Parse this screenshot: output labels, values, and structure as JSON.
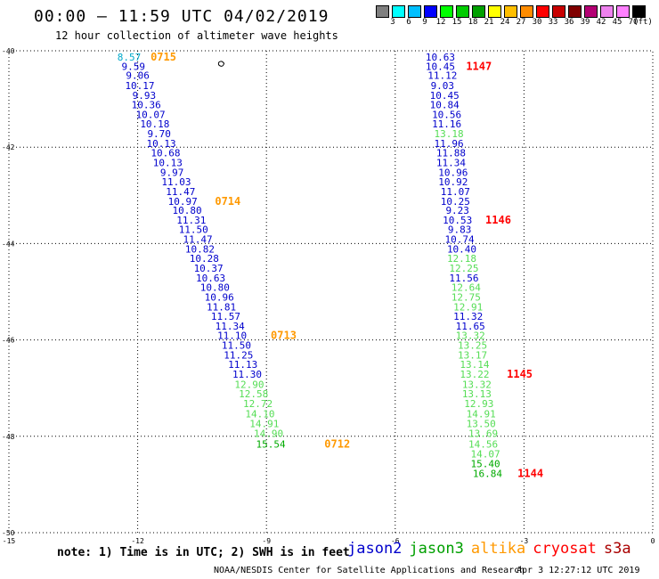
{
  "title": "00:00 — 11:59 UTC 04/02/2019",
  "subtitle": "12 hour collection of altimeter wave heights",
  "legend": {
    "unit": "(ft)",
    "colors": [
      "#7f7f7f",
      "#00ffff",
      "#00bfff",
      "#0000ff",
      "#00ff00",
      "#00cc00",
      "#00a000",
      "#ffff00",
      "#ffbf00",
      "#ff8c00",
      "#ff0000",
      "#c80000",
      "#800000",
      "#b30073",
      "#ee82ee",
      "#ff80ff",
      "#000000"
    ],
    "labels": [
      "3",
      "6",
      "9",
      "12",
      "15",
      "18",
      "21",
      "24",
      "27",
      "30",
      "33",
      "36",
      "39",
      "42",
      "45",
      "70"
    ]
  },
  "note": "note:  1) Time is in UTC;  2) SWH is in feet",
  "satellites": [
    {
      "name": "jason2",
      "color": "#0000cc"
    },
    {
      "name": "jason3",
      "color": "#00a000"
    },
    {
      "name": "altika",
      "color": "#ff9900"
    },
    {
      "name": "cryosat",
      "color": "#ff0000"
    },
    {
      "name": "s3a",
      "color": "#aa0000"
    }
  ],
  "footer": {
    "center": "NOAA/NESDIS Center for Satellite Applications and Research",
    "right": "Apr  3 12:27:12 UTC 2019"
  },
  "chart_data": {
    "type": "scatter",
    "xlim": [
      -15,
      0
    ],
    "ylim": [
      -50,
      -40
    ],
    "x_ticks": [
      "-15",
      "-12",
      "-9",
      "-6",
      "-3",
      "0"
    ],
    "y_ticks": [
      "-40",
      "-42",
      "-44",
      "-46",
      "-48",
      "-50"
    ],
    "grid": true,
    "track_left": [
      {
        "x": -12.2,
        "y": -40.13,
        "v": "8.57",
        "c": "#00aacc"
      },
      {
        "x": -12.1,
        "y": -40.32,
        "v": "9.59",
        "c": "#0000cc"
      },
      {
        "x": -12.0,
        "y": -40.51,
        "v": "9.06",
        "c": "#0000cc"
      },
      {
        "x": -11.95,
        "y": -40.72,
        "v": "10.17",
        "c": "#0000cc"
      },
      {
        "x": -11.85,
        "y": -40.92,
        "v": "9.93",
        "c": "#0000cc"
      },
      {
        "x": -11.8,
        "y": -41.12,
        "v": "10.36",
        "c": "#0000cc"
      },
      {
        "x": -11.7,
        "y": -41.32,
        "v": "10.07",
        "c": "#0000cc"
      },
      {
        "x": -11.6,
        "y": -41.52,
        "v": "10.18",
        "c": "#0000cc"
      },
      {
        "x": -11.5,
        "y": -41.72,
        "v": "9.70",
        "c": "#0000cc"
      },
      {
        "x": -11.45,
        "y": -41.92,
        "v": "10.13",
        "c": "#0000cc"
      },
      {
        "x": -11.35,
        "y": -42.12,
        "v": "10.68",
        "c": "#0000cc"
      },
      {
        "x": -11.3,
        "y": -42.32,
        "v": "10.13",
        "c": "#0000cc"
      },
      {
        "x": -11.2,
        "y": -42.52,
        "v": "9.97",
        "c": "#0000cc"
      },
      {
        "x": -11.1,
        "y": -42.72,
        "v": "11.03",
        "c": "#0000cc"
      },
      {
        "x": -11.0,
        "y": -42.92,
        "v": "11.47",
        "c": "#0000cc"
      },
      {
        "x": -10.95,
        "y": -43.12,
        "v": "10.97",
        "c": "#0000cc"
      },
      {
        "x": -10.85,
        "y": -43.31,
        "v": "10.80",
        "c": "#0000cc"
      },
      {
        "x": -10.75,
        "y": -43.51,
        "v": "11.31",
        "c": "#0000cc"
      },
      {
        "x": -10.7,
        "y": -43.71,
        "v": "11.50",
        "c": "#0000cc"
      },
      {
        "x": -10.6,
        "y": -43.91,
        "v": "11.47",
        "c": "#0000cc"
      },
      {
        "x": -10.55,
        "y": -44.11,
        "v": "10.82",
        "c": "#0000cc"
      },
      {
        "x": -10.45,
        "y": -44.31,
        "v": "10.28",
        "c": "#0000cc"
      },
      {
        "x": -10.35,
        "y": -44.51,
        "v": "10.37",
        "c": "#0000cc"
      },
      {
        "x": -10.3,
        "y": -44.71,
        "v": "10.63",
        "c": "#0000cc"
      },
      {
        "x": -10.2,
        "y": -44.91,
        "v": "10.80",
        "c": "#0000cc"
      },
      {
        "x": -10.1,
        "y": -45.11,
        "v": "10.96",
        "c": "#0000cc"
      },
      {
        "x": -10.05,
        "y": -45.31,
        "v": "11.81",
        "c": "#0000cc"
      },
      {
        "x": -9.95,
        "y": -45.51,
        "v": "11.57",
        "c": "#0000cc"
      },
      {
        "x": -9.85,
        "y": -45.71,
        "v": "11.34",
        "c": "#0000cc"
      },
      {
        "x": -9.8,
        "y": -45.91,
        "v": "11.10",
        "c": "#0000cc"
      },
      {
        "x": -9.7,
        "y": -46.11,
        "v": "11.50",
        "c": "#0000cc"
      },
      {
        "x": -9.65,
        "y": -46.31,
        "v": "11.25",
        "c": "#0000cc"
      },
      {
        "x": -9.55,
        "y": -46.51,
        "v": "11.13",
        "c": "#0000cc"
      },
      {
        "x": -9.45,
        "y": -46.71,
        "v": "11.30",
        "c": "#0000cc"
      },
      {
        "x": -9.4,
        "y": -46.92,
        "v": "12.90",
        "c": "#55dd55"
      },
      {
        "x": -9.3,
        "y": -47.12,
        "v": "12.58",
        "c": "#55dd55"
      },
      {
        "x": -9.2,
        "y": -47.32,
        "v": "12.72",
        "c": "#55dd55"
      },
      {
        "x": -9.15,
        "y": -47.53,
        "v": "14.10",
        "c": "#55dd55"
      },
      {
        "x": -9.05,
        "y": -47.74,
        "v": "14.91",
        "c": "#55dd55"
      },
      {
        "x": -8.95,
        "y": -47.94,
        "v": "14.90",
        "c": "#55dd55"
      },
      {
        "x": -8.9,
        "y": -48.16,
        "v": "15.54",
        "c": "#00aa00"
      }
    ],
    "track_right": [
      {
        "x": -4.95,
        "y": -40.13,
        "v": "10.63",
        "c": "#0000cc"
      },
      {
        "x": -4.95,
        "y": -40.32,
        "v": "10.45",
        "c": "#0000cc"
      },
      {
        "x": -4.9,
        "y": -40.51,
        "v": "11.12",
        "c": "#0000cc"
      },
      {
        "x": -4.9,
        "y": -40.72,
        "v": "9.03",
        "c": "#0000cc"
      },
      {
        "x": -4.85,
        "y": -40.92,
        "v": "10.45",
        "c": "#0000cc"
      },
      {
        "x": -4.85,
        "y": -41.12,
        "v": "10.84",
        "c": "#0000cc"
      },
      {
        "x": -4.8,
        "y": -41.32,
        "v": "10.56",
        "c": "#0000cc"
      },
      {
        "x": -4.8,
        "y": -41.52,
        "v": "11.16",
        "c": "#0000cc"
      },
      {
        "x": -4.75,
        "y": -41.72,
        "v": "13.18",
        "c": "#55dd55"
      },
      {
        "x": -4.75,
        "y": -41.92,
        "v": "11.96",
        "c": "#0000cc"
      },
      {
        "x": -4.7,
        "y": -42.12,
        "v": "11.88",
        "c": "#0000cc"
      },
      {
        "x": -4.7,
        "y": -42.32,
        "v": "11.34",
        "c": "#0000cc"
      },
      {
        "x": -4.65,
        "y": -42.52,
        "v": "10.96",
        "c": "#0000cc"
      },
      {
        "x": -4.65,
        "y": -42.72,
        "v": "10.92",
        "c": "#0000cc"
      },
      {
        "x": -4.6,
        "y": -42.92,
        "v": "11.07",
        "c": "#0000cc"
      },
      {
        "x": -4.6,
        "y": -43.12,
        "v": "10.25",
        "c": "#0000cc"
      },
      {
        "x": -4.55,
        "y": -43.31,
        "v": "9.23",
        "c": "#0000cc"
      },
      {
        "x": -4.55,
        "y": -43.51,
        "v": "10.53",
        "c": "#0000cc"
      },
      {
        "x": -4.5,
        "y": -43.71,
        "v": "9.83",
        "c": "#0000cc"
      },
      {
        "x": -4.5,
        "y": -43.91,
        "v": "10.74",
        "c": "#0000cc"
      },
      {
        "x": -4.45,
        "y": -44.11,
        "v": "10.40",
        "c": "#0000cc"
      },
      {
        "x": -4.45,
        "y": -44.31,
        "v": "12.18",
        "c": "#55dd55"
      },
      {
        "x": -4.4,
        "y": -44.51,
        "v": "12.25",
        "c": "#55dd55"
      },
      {
        "x": -4.4,
        "y": -44.71,
        "v": "11.56",
        "c": "#0000cc"
      },
      {
        "x": -4.35,
        "y": -44.91,
        "v": "12.64",
        "c": "#55dd55"
      },
      {
        "x": -4.35,
        "y": -45.11,
        "v": "12.75",
        "c": "#55dd55"
      },
      {
        "x": -4.3,
        "y": -45.31,
        "v": "12.91",
        "c": "#55dd55"
      },
      {
        "x": -4.3,
        "y": -45.51,
        "v": "11.32",
        "c": "#0000cc"
      },
      {
        "x": -4.25,
        "y": -45.71,
        "v": "11.65",
        "c": "#0000cc"
      },
      {
        "x": -4.25,
        "y": -45.91,
        "v": "13.32",
        "c": "#55dd55"
      },
      {
        "x": -4.2,
        "y": -46.11,
        "v": "13.25",
        "c": "#55dd55"
      },
      {
        "x": -4.2,
        "y": -46.31,
        "v": "13.17",
        "c": "#55dd55"
      },
      {
        "x": -4.15,
        "y": -46.51,
        "v": "13.14",
        "c": "#55dd55"
      },
      {
        "x": -4.15,
        "y": -46.71,
        "v": "13.22",
        "c": "#55dd55"
      },
      {
        "x": -4.1,
        "y": -46.92,
        "v": "13.32",
        "c": "#55dd55"
      },
      {
        "x": -4.1,
        "y": -47.12,
        "v": "13.13",
        "c": "#55dd55"
      },
      {
        "x": -4.05,
        "y": -47.32,
        "v": "12.93",
        "c": "#55dd55"
      },
      {
        "x": -4.0,
        "y": -47.53,
        "v": "14.91",
        "c": "#55dd55"
      },
      {
        "x": -4.0,
        "y": -47.74,
        "v": "13.50",
        "c": "#55dd55"
      },
      {
        "x": -3.95,
        "y": -47.94,
        "v": "13.69",
        "c": "#55dd55"
      },
      {
        "x": -3.95,
        "y": -48.16,
        "v": "14.56",
        "c": "#55dd55"
      },
      {
        "x": -3.9,
        "y": -48.36,
        "v": "14.07",
        "c": "#55dd55"
      },
      {
        "x": -3.9,
        "y": -48.57,
        "v": "15.40",
        "c": "#00aa00"
      },
      {
        "x": -3.85,
        "y": -48.77,
        "v": "16.84",
        "c": "#00aa00"
      }
    ],
    "time_labels": [
      {
        "x": -11.4,
        "y": -40.13,
        "v": "0715",
        "c": "#ff9900"
      },
      {
        "x": -9.9,
        "y": -43.12,
        "v": "0714",
        "c": "#ff9900"
      },
      {
        "x": -8.6,
        "y": -45.91,
        "v": "0713",
        "c": "#ff9900"
      },
      {
        "x": -7.35,
        "y": -48.16,
        "v": "0712",
        "c": "#ff9900"
      },
      {
        "x": -4.05,
        "y": -40.32,
        "v": "1147",
        "c": "#ff0000"
      },
      {
        "x": -3.6,
        "y": -43.51,
        "v": "1146",
        "c": "#ff0000"
      },
      {
        "x": -3.1,
        "y": -46.71,
        "v": "1145",
        "c": "#ff0000"
      },
      {
        "x": -2.85,
        "y": -48.77,
        "v": "1144",
        "c": "#ff0000"
      }
    ],
    "island": {
      "x": -10.05,
      "y": -40.28
    }
  }
}
